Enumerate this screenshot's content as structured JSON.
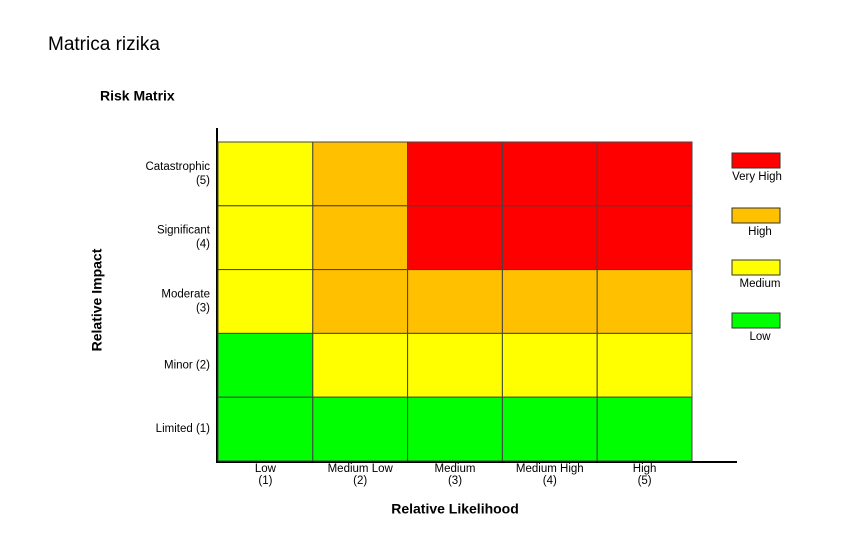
{
  "slide": {
    "title": "Matrica rizika"
  },
  "matrix": {
    "title": "Risk Matrix",
    "y_axis_label": "Relative Impact",
    "x_axis_label": "Relative Likelihood",
    "rows": [
      [
        "Catastrophic",
        "(5)"
      ],
      [
        "Significant",
        "(4)"
      ],
      [
        "Moderate",
        "(3)"
      ],
      [
        "Minor (2)"
      ],
      [
        "Limited (1)"
      ]
    ],
    "columns": [
      [
        "Low",
        "(1)"
      ],
      [
        "Medium Low",
        "(2)"
      ],
      [
        "Medium",
        "(3)"
      ],
      [
        "Medium High",
        "(4)"
      ],
      [
        "High",
        "(5)"
      ]
    ],
    "cells": [
      [
        2,
        1,
        0,
        0,
        0
      ],
      [
        2,
        1,
        0,
        0,
        0
      ],
      [
        2,
        1,
        1,
        1,
        1
      ],
      [
        3,
        2,
        2,
        2,
        2
      ],
      [
        3,
        3,
        3,
        3,
        3
      ]
    ],
    "legend": [
      {
        "label": "Very High",
        "color": "#ff0000"
      },
      {
        "label": "High",
        "color": "#ffc000"
      },
      {
        "label": "Medium",
        "color": "#ffff00"
      },
      {
        "label": "Low",
        "color": "#00ff00"
      }
    ]
  }
}
